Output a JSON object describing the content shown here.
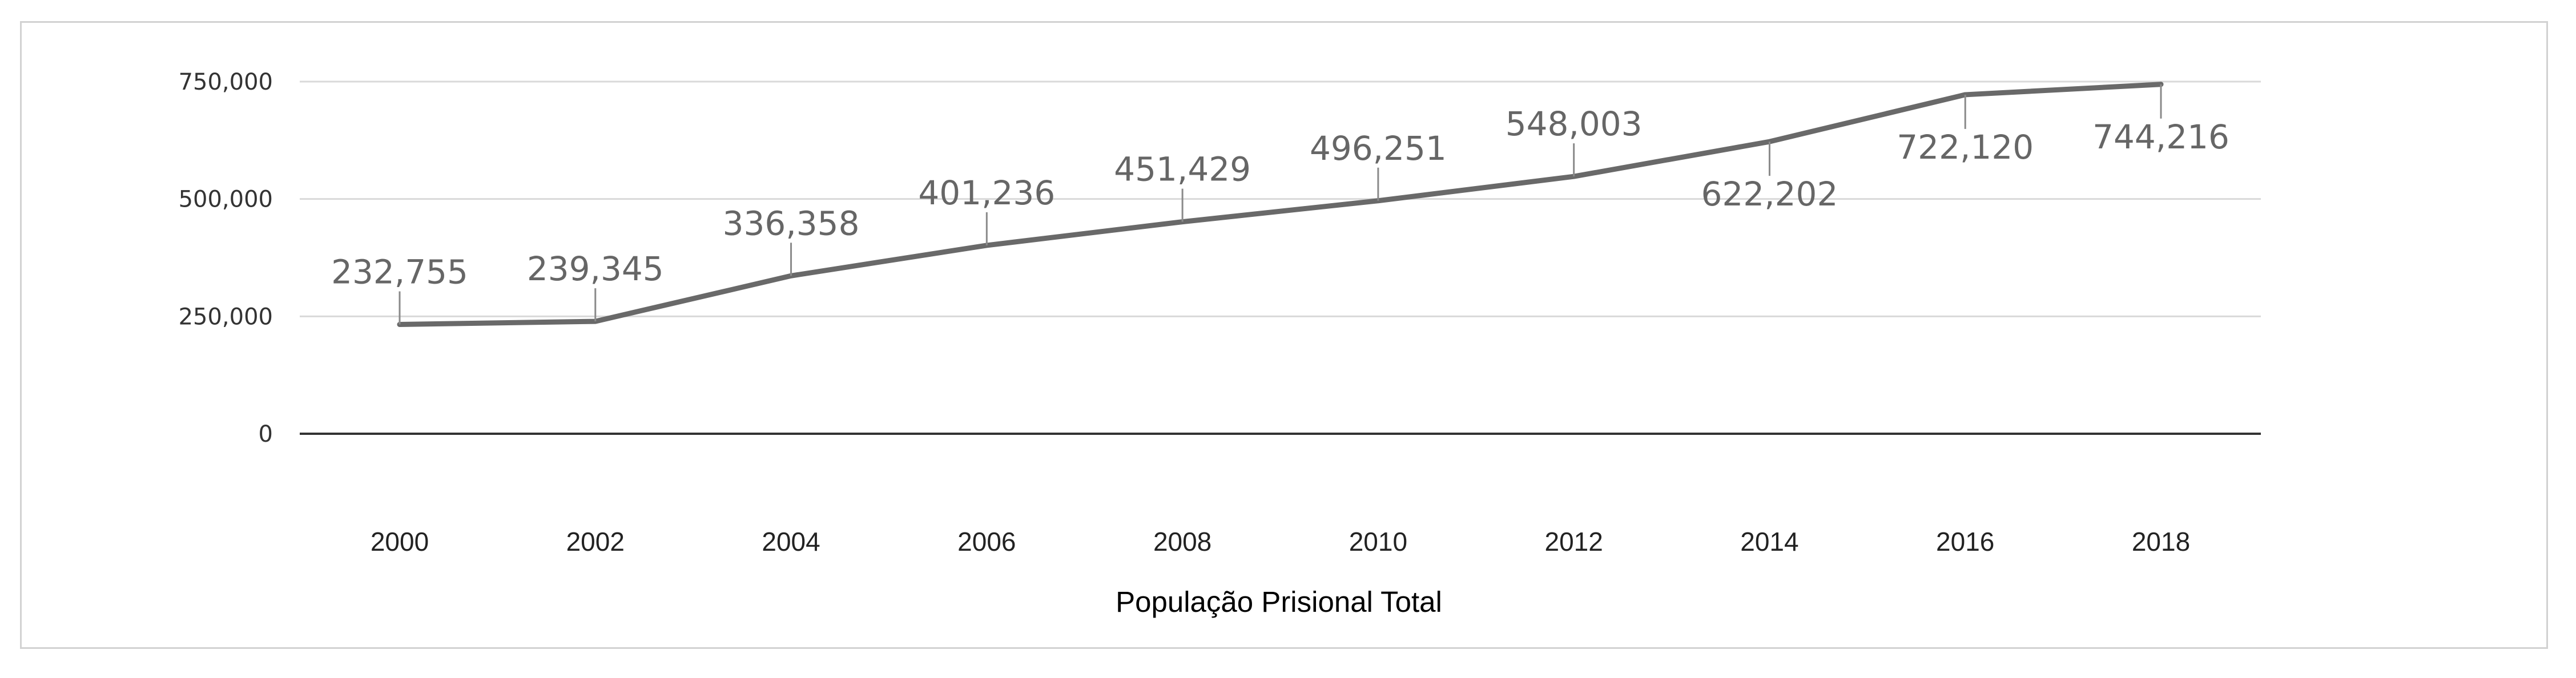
{
  "chart_data": {
    "type": "line",
    "title": "",
    "xlabel": "População Prisional Total",
    "ylabel": "",
    "x": [
      "2000",
      "2002",
      "2004",
      "2006",
      "2008",
      "2010",
      "2012",
      "2014",
      "2016",
      "2018"
    ],
    "series": [
      {
        "values": [
          232755,
          239345,
          336358,
          401236,
          451429,
          496251,
          548003,
          622202,
          722120,
          744216
        ],
        "labels": [
          "232,755",
          "239,345",
          "336,358",
          "401,236",
          "451,429",
          "496,251",
          "548,003",
          "622,202",
          "722,120",
          "744,216"
        ],
        "label_side": [
          "above",
          "above",
          "above",
          "above",
          "above",
          "above",
          "above",
          "below",
          "below",
          "below"
        ],
        "color": "#696969"
      }
    ],
    "ylim": [
      0,
      750000
    ],
    "yticks": [
      0,
      250000,
      500000,
      750000
    ],
    "ytick_labels": [
      "0",
      "250,000",
      "500,000",
      "750,000"
    ],
    "grid": true,
    "gridline_color": "#d9d9d9",
    "baseline_color": "#333333",
    "legend": "none"
  }
}
